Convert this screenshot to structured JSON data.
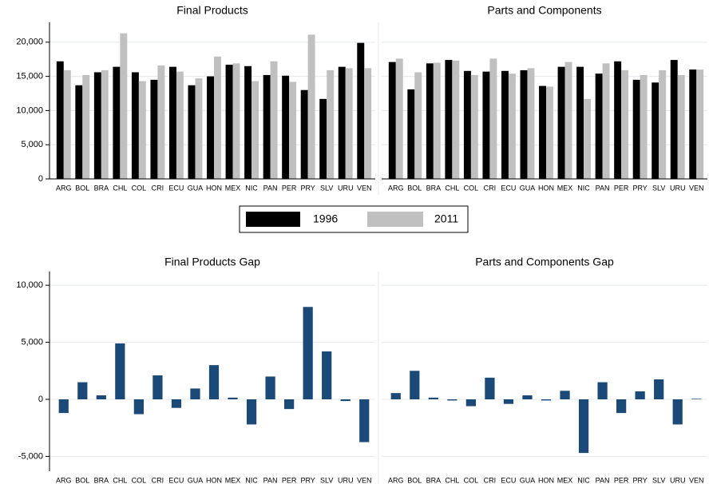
{
  "chart_data": [
    {
      "type": "bar",
      "title": "Final Products",
      "categories": [
        "ARG",
        "BOL",
        "BRA",
        "CHL",
        "COL",
        "CRI",
        "ECU",
        "GUA",
        "HON",
        "MEX",
        "NIC",
        "PAN",
        "PER",
        "PRY",
        "SLV",
        "URU",
        "VEN"
      ],
      "series": [
        {
          "name": "1996",
          "color": "#000000",
          "values": [
            17200,
            13700,
            15600,
            16400,
            15600,
            14500,
            16400,
            13700,
            15000,
            16700,
            16500,
            15200,
            15100,
            13000,
            11700,
            16400,
            19900
          ]
        },
        {
          "name": "2011",
          "color": "#c0c0c0",
          "values": [
            15900,
            15200,
            15900,
            21300,
            14300,
            16600,
            15700,
            14700,
            17900,
            16900,
            14300,
            17200,
            14200,
            21100,
            15900,
            16200,
            16200
          ]
        }
      ],
      "ylim": [
        0,
        22900
      ],
      "yticks": [
        0,
        {
          "value": 5000,
          "label": "5,000"
        },
        {
          "value": 10000,
          "label": "10,000"
        },
        {
          "value": 15000,
          "label": "15,000"
        },
        {
          "value": 20000,
          "label": "20,000"
        }
      ],
      "grid": true
    },
    {
      "type": "bar",
      "title": "Parts and Components",
      "categories": [
        "ARG",
        "BOL",
        "BRA",
        "CHL",
        "COL",
        "CRI",
        "ECU",
        "GUA",
        "HON",
        "MEX",
        "NIC",
        "PAN",
        "PER",
        "PRY",
        "SLV",
        "URU",
        "VEN"
      ],
      "series": [
        {
          "name": "1996",
          "color": "#000000",
          "values": [
            17100,
            13100,
            16900,
            17400,
            15800,
            15700,
            15800,
            15900,
            13600,
            16400,
            16400,
            15400,
            17200,
            14500,
            14100,
            17400,
            16000
          ]
        },
        {
          "name": "2011",
          "color": "#c0c0c0",
          "values": [
            17600,
            15600,
            17000,
            17300,
            15200,
            17600,
            15400,
            16200,
            13500,
            17100,
            11700,
            16900,
            15900,
            15200,
            15900,
            15200,
            16000
          ]
        }
      ],
      "grid": true
    },
    {
      "type": "bar",
      "title": "Final Products Gap",
      "categories": [
        "ARG",
        "BOL",
        "BRA",
        "CHL",
        "COL",
        "CRI",
        "ECU",
        "GUA",
        "HON",
        "MEX",
        "NIC",
        "PAN",
        "PER",
        "PRY",
        "SLV",
        "URU",
        "VEN"
      ],
      "values": [
        -1200,
        1500,
        350,
        4900,
        -1300,
        2100,
        -750,
        950,
        3000,
        150,
        -2200,
        2000,
        -850,
        8100,
        4200,
        -150,
        -3750
      ],
      "color": "#1b4a78",
      "ylim": [
        -6300,
        11200
      ],
      "yticks": [
        {
          "value": -5000,
          "label": "-5,000"
        },
        0,
        {
          "value": 5000,
          "label": "5,000"
        },
        {
          "value": 10000,
          "label": "10,000"
        }
      ],
      "grid": true
    },
    {
      "type": "bar",
      "title": "Parts and Components Gap",
      "categories": [
        "ARG",
        "BOL",
        "BRA",
        "CHL",
        "COL",
        "CRI",
        "ECU",
        "GUA",
        "HON",
        "MEX",
        "NIC",
        "PAN",
        "PER",
        "PRY",
        "SLV",
        "URU",
        "VEN"
      ],
      "values": [
        550,
        2500,
        150,
        -100,
        -600,
        1900,
        -400,
        350,
        -100,
        750,
        -4700,
        1500,
        -1200,
        700,
        1750,
        -2200,
        50
      ],
      "color": "#1b4a78",
      "grid": true
    }
  ]
}
